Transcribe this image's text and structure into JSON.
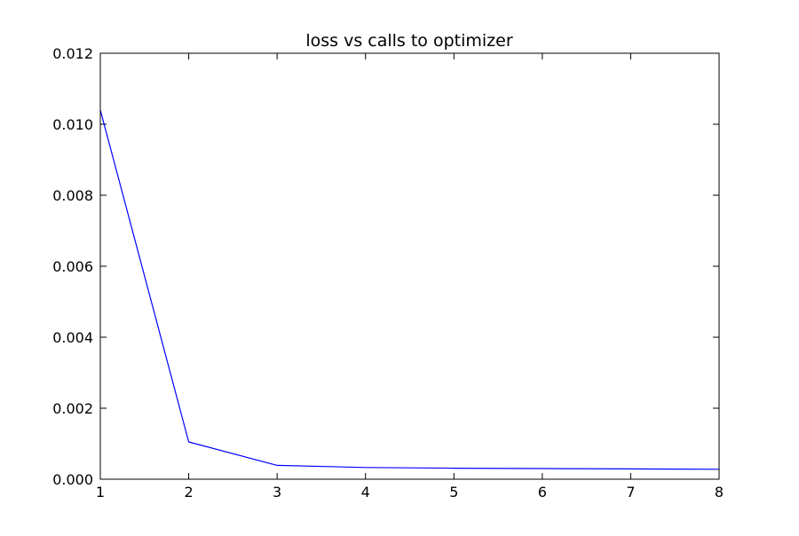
{
  "chart_data": {
    "type": "line",
    "title": "loss vs calls to optimizer",
    "xlabel": "",
    "ylabel": "",
    "xlim": [
      1,
      8
    ],
    "ylim": [
      0.0,
      0.012
    ],
    "xticks": [
      1,
      2,
      3,
      4,
      5,
      6,
      7,
      8
    ],
    "xtick_labels": [
      "1",
      "2",
      "3",
      "4",
      "5",
      "6",
      "7",
      "8"
    ],
    "yticks": [
      0.0,
      0.002,
      0.004,
      0.006,
      0.008,
      0.01,
      0.012
    ],
    "ytick_labels": [
      "0.000",
      "0.002",
      "0.004",
      "0.006",
      "0.008",
      "0.010",
      "0.012"
    ],
    "grid": false,
    "legend": "none",
    "series": [
      {
        "color": "#0000ff",
        "x": [
          1,
          2,
          3,
          4,
          5,
          6,
          7,
          8
        ],
        "y": [
          0.0104,
          0.00105,
          0.00039,
          0.00033,
          0.00031,
          0.0003,
          0.00029,
          0.00028
        ]
      }
    ]
  }
}
